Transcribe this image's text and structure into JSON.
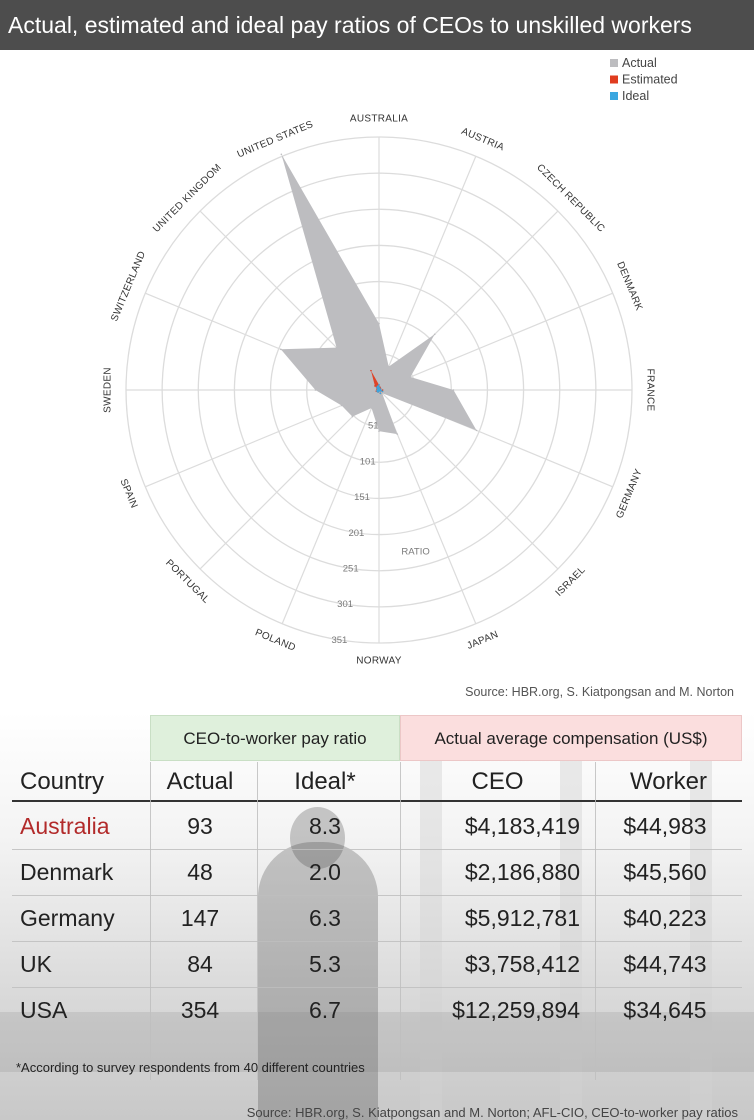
{
  "title": "Actual, estimated and ideal pay ratios of CEOs to unskilled workers",
  "colors": {
    "actual": "#bdbdc0",
    "estimated": "#e03c1f",
    "ideal": "#3aa7e0",
    "country_highlight": "#b22a2a"
  },
  "chart_data": {
    "type": "radar",
    "categories": [
      "AUSTRALIA",
      "AUSTRIA",
      "CZECH REPUBLIC",
      "DENMARK",
      "FRANCE",
      "GERMANY",
      "ISRAEL",
      "JAPAN",
      "NORWAY",
      "POLAND",
      "PORTUGAL",
      "SPAIN",
      "SWEDEN",
      "SWITZERLAND",
      "UNITED KINGDOM",
      "UNITED STATES"
    ],
    "series": [
      {
        "name": "Actual",
        "values": [
          93,
          36,
          110,
          48,
          104,
          147,
          7,
          67,
          58,
          28,
          53,
          57,
          89,
          148,
          84,
          354
        ]
      },
      {
        "name": "Estimated",
        "values": [
          8,
          5,
          4,
          3,
          6,
          6,
          3,
          6,
          2,
          4,
          4,
          5,
          3,
          4,
          9,
          30
        ]
      },
      {
        "name": "Ideal",
        "values": [
          8.3,
          4,
          3,
          2,
          4,
          6.3,
          3,
          6,
          2,
          4,
          4,
          4,
          2.5,
          3,
          5.3,
          6.7
        ]
      }
    ],
    "ring_values": [
      51,
      101,
      151,
      201,
      251,
      301,
      351
    ],
    "ring_label": "RATIO",
    "range": [
      1,
      351
    ],
    "legend_position": "top-right",
    "source": "Source: HBR.org, S. Kiatpongsan and M. Norton"
  },
  "table": {
    "group_headers": [
      "CEO-to-worker pay ratio",
      "Actual average compensation (US$)"
    ],
    "columns": [
      "Country",
      "Actual",
      "Ideal*",
      "CEO",
      "Worker"
    ],
    "rows": [
      {
        "country": "Australia",
        "actual": "93",
        "ideal": "8.3",
        "ceo": "$4,183,419",
        "worker": "$44,983"
      },
      {
        "country": "Denmark",
        "actual": "48",
        "ideal": "2.0",
        "ceo": "$2,186,880",
        "worker": "$45,560"
      },
      {
        "country": "Germany",
        "actual": "147",
        "ideal": "6.3",
        "ceo": "$5,912,781",
        "worker": "$40,223"
      },
      {
        "country": "UK",
        "actual": "84",
        "ideal": "5.3",
        "ceo": "$3,758,412",
        "worker": "$44,743"
      },
      {
        "country": "USA",
        "actual": "354",
        "ideal": "6.7",
        "ceo": "$12,259,894",
        "worker": "$34,645"
      }
    ],
    "footnote": "*According to survey respondents from 40 different countries",
    "source": "Source: HBR.org, S. Kiatpongsan and M. Norton; AFL-CIO, CEO-to-worker pay ratios"
  }
}
